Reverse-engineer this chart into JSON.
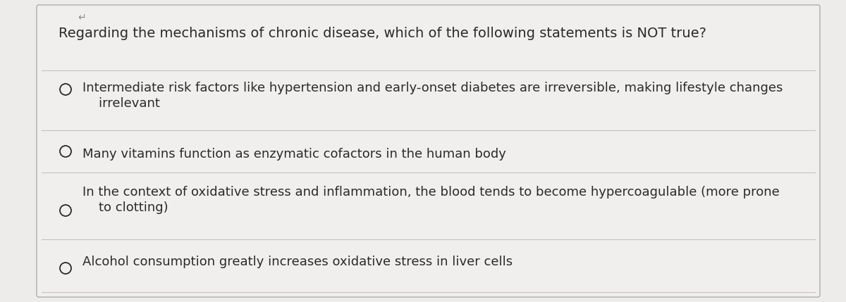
{
  "title": "Regarding the mechanisms of chronic disease, which of the following statements is NOT true?",
  "title_fontsize": 14,
  "options": [
    [
      "Intermediate risk factors like hypertension and early-onset diabetes are irreversible, making lifestyle changes",
      "    irrelevant"
    ],
    [
      "Many vitamins function as enzymatic cofactors in the human body"
    ],
    [
      "In the context of oxidative stress and inflammation, the blood tends to become hypercoagulable (more prone",
      "    to clotting)"
    ],
    [
      "Alcohol consumption greatly increases oxidative stress in liver cells"
    ]
  ],
  "option_fontsize": 13,
  "bg_color": "#edecea",
  "card_color": "#f0efed",
  "text_color": "#2a2a2a",
  "divider_color": "#c5c2be",
  "card_edge_color": "#b0ada8",
  "arrow_color": "#888888"
}
